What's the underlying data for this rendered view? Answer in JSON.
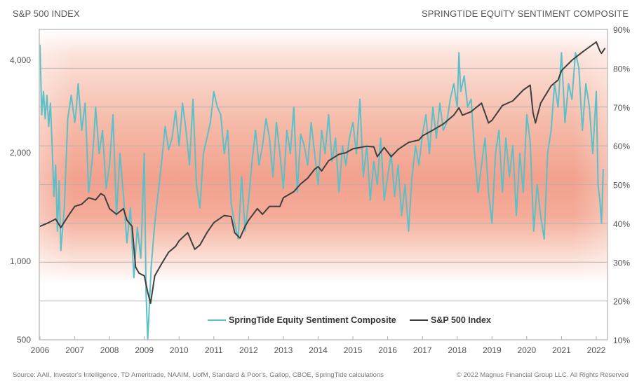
{
  "header": {
    "left_title": "S&P 500 INDEX",
    "right_title": "SPRINGTIDE EQUITY SENTIMENT COMPOSITE"
  },
  "footer": {
    "source": "Source: AAII, Investor's Intelligence, TD Ameritrade, NAAIM, UofM, Standard & Poor's, Gallop, CBOE, SpringTide calculations",
    "copyright": "© 2022 Magnus Financial Group LLC. All Rights Reserved"
  },
  "colors": {
    "sentiment": "#5bc0c8",
    "sp500": "#3f3f3f",
    "band": "#f29a85",
    "grid": "#b9b3b0",
    "frame": "#c4c0be"
  },
  "chart_data": {
    "type": "line",
    "title": "",
    "xlabel": "",
    "ylabel_left": "S&P 500 INDEX",
    "ylabel_right": "SPRINGTIDE EQUITY SENTIMENT COMPOSITE",
    "x_ticks": [
      "2006",
      "2007",
      "2008",
      "2009",
      "2010",
      "2011",
      "2012",
      "2013",
      "2014",
      "2015",
      "2016",
      "2017",
      "2018",
      "2019",
      "2020",
      "2021",
      "2022"
    ],
    "xlim": [
      2006.0,
      2022.3
    ],
    "left_axis": {
      "scale": "log",
      "ticks": [
        "500",
        "1,000",
        "2,000",
        "4,000"
      ],
      "tick_values": [
        500,
        1000,
        2000,
        4000
      ],
      "ylim": [
        500,
        4700
      ]
    },
    "right_axis": {
      "ticks": [
        "10%",
        "20%",
        "30%",
        "40%",
        "50%",
        "60%",
        "70%",
        "80%",
        "90%"
      ],
      "tick_values": [
        10,
        20,
        30,
        40,
        50,
        60,
        70,
        80,
        90
      ],
      "ylim": [
        10,
        90
      ]
    },
    "grid": true,
    "background_band": "shaded warm gradient centered around 45%–50% sentiment",
    "legend": {
      "placement": "bottom-center",
      "entries": [
        "SpringTide Equity Sentiment Composite",
        "S&P 500 Index"
      ]
    },
    "series": [
      {
        "name": "SpringTide Equity Sentiment Composite",
        "axis": "right",
        "unit": "%",
        "x": [
          2006.0,
          2006.05,
          2006.1,
          2006.15,
          2006.2,
          2006.25,
          2006.3,
          2006.35,
          2006.4,
          2006.45,
          2006.5,
          2006.55,
          2006.6,
          2006.7,
          2006.8,
          2006.9,
          2007.0,
          2007.05,
          2007.1,
          2007.2,
          2007.3,
          2007.4,
          2007.5,
          2007.55,
          2007.6,
          2007.7,
          2007.8,
          2007.9,
          2008.0,
          2008.1,
          2008.2,
          2008.3,
          2008.4,
          2008.5,
          2008.6,
          2008.7,
          2008.8,
          2008.9,
          2009.0,
          2009.05,
          2009.1,
          2009.2,
          2009.3,
          2009.4,
          2009.5,
          2009.6,
          2009.7,
          2009.8,
          2009.9,
          2010.0,
          2010.1,
          2010.2,
          2010.3,
          2010.4,
          2010.5,
          2010.6,
          2010.7,
          2010.8,
          2010.9,
          2011.0,
          2011.1,
          2011.2,
          2011.3,
          2011.4,
          2011.5,
          2011.6,
          2011.7,
          2011.8,
          2011.9,
          2012.0,
          2012.1,
          2012.2,
          2012.3,
          2012.4,
          2012.5,
          2012.6,
          2012.7,
          2012.8,
          2012.9,
          2013.0,
          2013.1,
          2013.2,
          2013.3,
          2013.4,
          2013.5,
          2013.6,
          2013.7,
          2013.8,
          2013.9,
          2014.0,
          2014.1,
          2014.2,
          2014.3,
          2014.4,
          2014.5,
          2014.6,
          2014.7,
          2014.8,
          2014.9,
          2015.0,
          2015.1,
          2015.2,
          2015.3,
          2015.4,
          2015.5,
          2015.6,
          2015.7,
          2015.8,
          2015.9,
          2016.0,
          2016.1,
          2016.2,
          2016.3,
          2016.4,
          2016.5,
          2016.6,
          2016.7,
          2016.8,
          2016.9,
          2017.0,
          2017.1,
          2017.2,
          2017.3,
          2017.4,
          2017.5,
          2017.6,
          2017.7,
          2017.8,
          2017.9,
          2018.0,
          2018.05,
          2018.1,
          2018.2,
          2018.3,
          2018.4,
          2018.5,
          2018.6,
          2018.7,
          2018.8,
          2018.9,
          2019.0,
          2019.1,
          2019.2,
          2019.3,
          2019.4,
          2019.5,
          2019.6,
          2019.7,
          2019.8,
          2019.9,
          2020.0,
          2020.1,
          2020.2,
          2020.3,
          2020.4,
          2020.5,
          2020.6,
          2020.7,
          2020.8,
          2020.9,
          2021.0,
          2021.1,
          2021.2,
          2021.3,
          2021.4,
          2021.5,
          2021.6,
          2021.7,
          2021.8,
          2021.9,
          2022.0,
          2022.05,
          2022.1,
          2022.15,
          2022.2
        ],
        "values": [
          86,
          68,
          74,
          67,
          73,
          65,
          71,
          60,
          47,
          55,
          38,
          51,
          33,
          44,
          67,
          73,
          66,
          70,
          76,
          64,
          71,
          48,
          56,
          62,
          70,
          58,
          64,
          49,
          55,
          68,
          42,
          58,
          47,
          35,
          44,
          26,
          39,
          31,
          58,
          22,
          10,
          29,
          40,
          48,
          56,
          65,
          59,
          62,
          69,
          60,
          71,
          64,
          55,
          72,
          50,
          44,
          58,
          62,
          66,
          74,
          70,
          68,
          58,
          64,
          45,
          40,
          36,
          52,
          38,
          46,
          56,
          64,
          55,
          60,
          67,
          62,
          52,
          66,
          58,
          49,
          64,
          58,
          70,
          48,
          63,
          60,
          55,
          66,
          58,
          50,
          64,
          58,
          68,
          56,
          62,
          48,
          60,
          55,
          62,
          66,
          58,
          72,
          52,
          60,
          46,
          56,
          50,
          62,
          46,
          52,
          58,
          47,
          55,
          42,
          50,
          38,
          52,
          60,
          55,
          63,
          68,
          58,
          70,
          62,
          71,
          64,
          66,
          72,
          76,
          70,
          84,
          74,
          78,
          70,
          72,
          58,
          48,
          55,
          62,
          48,
          40,
          58,
          64,
          48,
          62,
          52,
          60,
          42,
          58,
          48,
          68,
          61,
          38,
          50,
          42,
          36,
          58,
          64,
          76,
          70,
          84,
          66,
          76,
          72,
          84,
          80,
          64,
          76,
          70,
          58,
          74,
          50,
          46,
          40,
          54
        ]
      },
      {
        "name": "S&P 500 Index",
        "axis": "left",
        "unit": "index",
        "x": [
          2006.0,
          2006.25,
          2006.45,
          2006.6,
          2006.8,
          2007.0,
          2007.2,
          2007.4,
          2007.6,
          2007.75,
          2007.85,
          2008.0,
          2008.2,
          2008.4,
          2008.5,
          2008.65,
          2008.75,
          2008.85,
          2009.0,
          2009.1,
          2009.18,
          2009.3,
          2009.5,
          2009.7,
          2009.9,
          2010.0,
          2010.25,
          2010.45,
          2010.6,
          2010.8,
          2011.0,
          2011.3,
          2011.5,
          2011.6,
          2011.75,
          2011.9,
          2012.0,
          2012.25,
          2012.4,
          2012.6,
          2012.9,
          2013.0,
          2013.3,
          2013.5,
          2013.7,
          2013.9,
          2014.0,
          2014.1,
          2014.3,
          2014.6,
          2014.8,
          2015.0,
          2015.4,
          2015.6,
          2015.7,
          2015.9,
          2016.1,
          2016.3,
          2016.6,
          2016.9,
          2017.0,
          2017.3,
          2017.6,
          2017.9,
          2018.05,
          2018.15,
          2018.4,
          2018.7,
          2018.9,
          2019.0,
          2019.3,
          2019.6,
          2019.9,
          2020.1,
          2020.18,
          2020.25,
          2020.4,
          2020.7,
          2020.9,
          2021.0,
          2021.3,
          2021.6,
          2021.9,
          2022.0,
          2022.1,
          2022.15,
          2022.25
        ],
        "values": [
          1250,
          1280,
          1310,
          1240,
          1330,
          1420,
          1440,
          1500,
          1480,
          1540,
          1520,
          1400,
          1350,
          1400,
          1300,
          1250,
          950,
          900,
          880,
          760,
          690,
          880,
          980,
          1060,
          1100,
          1140,
          1200,
          1080,
          1110,
          1200,
          1280,
          1340,
          1330,
          1200,
          1160,
          1250,
          1300,
          1400,
          1350,
          1420,
          1420,
          1500,
          1560,
          1640,
          1700,
          1800,
          1830,
          1780,
          1900,
          1980,
          2000,
          2060,
          2100,
          2090,
          1950,
          2080,
          1950,
          2050,
          2160,
          2200,
          2270,
          2370,
          2480,
          2650,
          2800,
          2650,
          2720,
          2900,
          2500,
          2550,
          2850,
          2950,
          3200,
          3320,
          2700,
          2500,
          2900,
          3300,
          3450,
          3700,
          4000,
          4300,
          4600,
          4700,
          4350,
          4250,
          4450
        ]
      }
    ]
  }
}
